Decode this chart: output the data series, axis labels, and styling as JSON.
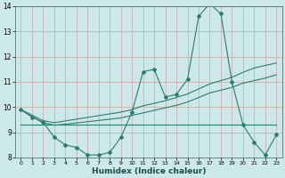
{
  "xlabel": "Humidex (Indice chaleur)",
  "x": [
    0,
    1,
    2,
    3,
    4,
    5,
    6,
    7,
    8,
    9,
    10,
    11,
    12,
    13,
    14,
    15,
    16,
    17,
    18,
    19,
    20,
    21,
    22,
    23
  ],
  "y_main": [
    9.9,
    9.6,
    9.4,
    8.8,
    8.5,
    8.4,
    8.1,
    8.1,
    8.2,
    8.8,
    9.8,
    11.4,
    11.5,
    10.4,
    10.5,
    11.1,
    13.6,
    14.1,
    13.7,
    11.0,
    9.3,
    8.6,
    8.1,
    8.9
  ],
  "y_trend_upper": [
    9.9,
    9.68,
    9.46,
    9.38,
    9.45,
    9.52,
    9.59,
    9.66,
    9.73,
    9.8,
    9.9,
    10.05,
    10.15,
    10.25,
    10.38,
    10.52,
    10.72,
    10.92,
    11.05,
    11.18,
    11.38,
    11.55,
    11.65,
    11.75
  ],
  "y_trend_lower": [
    9.9,
    9.62,
    9.38,
    9.28,
    9.32,
    9.37,
    9.42,
    9.47,
    9.52,
    9.57,
    9.67,
    9.77,
    9.87,
    9.97,
    10.07,
    10.2,
    10.38,
    10.56,
    10.67,
    10.78,
    10.95,
    11.05,
    11.15,
    11.28
  ],
  "y_flat": [
    9.3,
    9.3,
    9.3,
    9.3,
    9.3,
    9.3,
    9.3,
    9.3,
    9.3,
    9.3,
    9.3,
    9.3,
    9.3,
    9.3,
    9.3,
    9.3,
    9.3,
    9.3,
    9.3,
    9.3,
    9.3,
    9.3,
    9.3,
    9.3
  ],
  "line_color": "#2d7d6e",
  "bg_color": "#cce8e8",
  "grid_color": "#b8d8d8",
  "ylim": [
    8,
    14
  ],
  "xlim": [
    -0.5,
    23.5
  ],
  "yticks": [
    8,
    9,
    10,
    11,
    12,
    13,
    14
  ],
  "xticks": [
    0,
    1,
    2,
    3,
    4,
    5,
    6,
    7,
    8,
    9,
    10,
    11,
    12,
    13,
    14,
    15,
    16,
    17,
    18,
    19,
    20,
    21,
    22,
    23
  ]
}
